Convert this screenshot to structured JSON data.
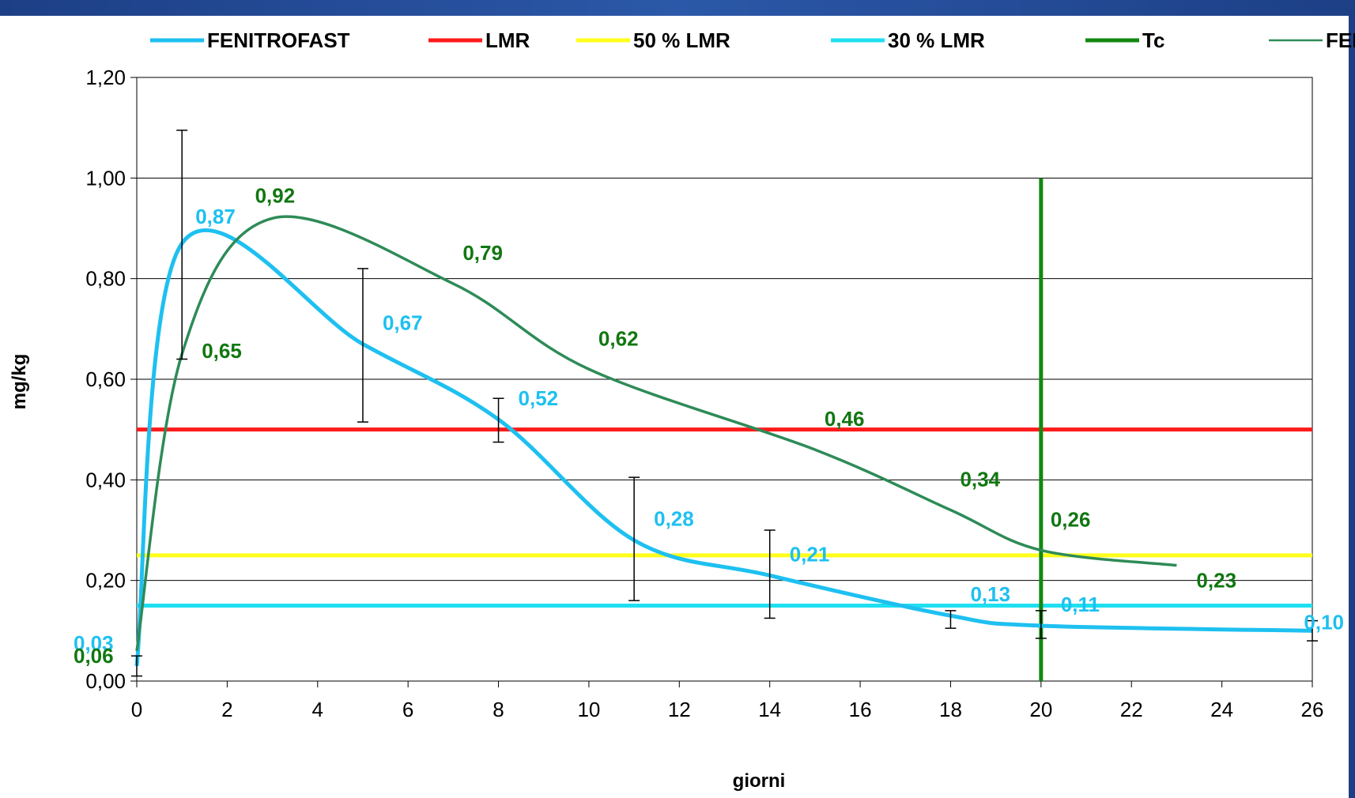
{
  "chart_data": {
    "type": "line",
    "title": "",
    "xlabel": "giorni",
    "ylabel": "mg/kg",
    "xlim": [
      0,
      26
    ],
    "ylim": [
      0,
      1.2
    ],
    "x_ticks": [
      "0",
      "2",
      "4",
      "6",
      "8",
      "10",
      "12",
      "14",
      "16",
      "18",
      "20",
      "22",
      "24",
      "26"
    ],
    "y_ticks": [
      "0,00",
      "0,20",
      "0,40",
      "0,60",
      "0,80",
      "1,00",
      "1,20"
    ],
    "grid": "horizontal",
    "legend_position": "top",
    "legend": [
      {
        "name": "FENITROFAST",
        "color": "#1ec0f0"
      },
      {
        "name": "LMR",
        "color": "#ff1a1a"
      },
      {
        "name": "50 % LMR",
        "color": "#ffff1a"
      },
      {
        "name": "30 % LMR",
        "color": "#1ee0f0"
      },
      {
        "name": "Tc",
        "color": "#118811"
      },
      {
        "name": "FENITROCAP",
        "color": "#2e8b57"
      }
    ],
    "series": [
      {
        "name": "FENITROFAST",
        "color": "#1ec0f0",
        "x": [
          0,
          1,
          5,
          8,
          11,
          14,
          18,
          20,
          26
        ],
        "y": [
          0.03,
          0.87,
          0.67,
          0.52,
          0.28,
          0.21,
          0.13,
          0.11,
          0.1
        ],
        "labels": [
          "0,03",
          "0,87",
          "0,67",
          "0,52",
          "0,28",
          "0,21",
          "0,13",
          "0,11",
          "0,10"
        ],
        "error_bars": [
          {
            "x": 0,
            "low": 0.01,
            "high": 0.05
          },
          {
            "x": 1,
            "low": 0.64,
            "high": 1.095
          },
          {
            "x": 5,
            "low": 0.515,
            "high": 0.82
          },
          {
            "x": 8,
            "low": 0.475,
            "high": 0.562
          },
          {
            "x": 11,
            "low": 0.16,
            "high": 0.405
          },
          {
            "x": 14,
            "low": 0.125,
            "high": 0.3
          },
          {
            "x": 18,
            "low": 0.105,
            "high": 0.14
          },
          {
            "x": 20,
            "low": 0.085,
            "high": 0.14
          },
          {
            "x": 26,
            "low": 0.08,
            "high": 0.12
          }
        ]
      },
      {
        "name": "FENITROCAP",
        "color": "#2e8b57",
        "x": [
          0,
          1,
          3,
          7,
          10,
          15,
          18,
          20,
          23
        ],
        "y": [
          0.06,
          0.65,
          0.92,
          0.79,
          0.62,
          0.46,
          0.34,
          0.26,
          0.23
        ],
        "labels": [
          "0,06",
          "0,65",
          "0,92",
          "0,79",
          "0,62",
          "0,46",
          "0,34",
          "0,26",
          "0,23"
        ]
      },
      {
        "name": "LMR",
        "color": "#ff1a1a",
        "x": [
          0,
          26
        ],
        "y": [
          0.5,
          0.5
        ]
      },
      {
        "name": "50 % LMR",
        "color": "#ffff1a",
        "x": [
          0,
          26
        ],
        "y": [
          0.25,
          0.25
        ]
      },
      {
        "name": "30 % LMR",
        "color": "#1ee0f0",
        "x": [
          0,
          26
        ],
        "y": [
          0.15,
          0.15
        ]
      },
      {
        "name": "Tc",
        "color": "#118811",
        "x": [
          20,
          20
        ],
        "y": [
          0,
          1.0
        ]
      }
    ],
    "label_color_fast": "#1ec0f0",
    "label_color_cap": "#117711"
  }
}
